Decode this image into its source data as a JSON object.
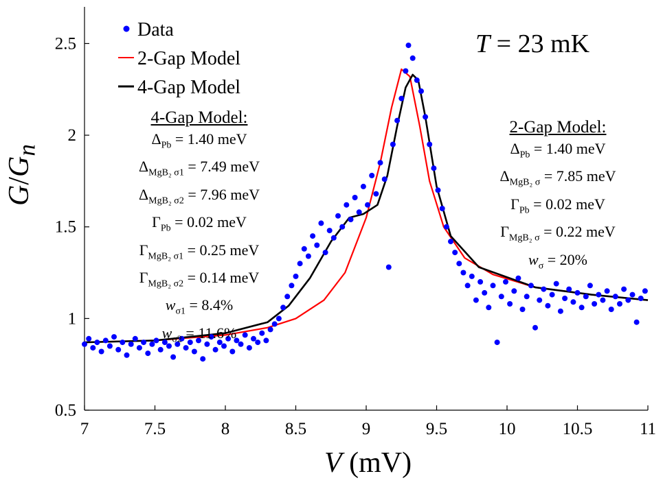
{
  "chart_data": {
    "type": "scatter",
    "xlabel": {
      "var": "V",
      "unit": "(mV)"
    },
    "ylabel": {
      "var1": "G",
      "slash": "/",
      "var2": "G",
      "sub": "n"
    },
    "xlim": [
      7,
      11
    ],
    "ylim": [
      0.5,
      2.7
    ],
    "xticks": [
      "7",
      "7.5",
      "8",
      "8.5",
      "9",
      "9.5",
      "10",
      "10.5",
      "11"
    ],
    "yticks": [
      "0.5",
      "1",
      "1.5",
      "2",
      "2.5"
    ],
    "grid": false,
    "legend_position": "top-left",
    "temperature": {
      "var": "T",
      "rest": " = 23 mK"
    },
    "series": [
      {
        "name": "Data",
        "kind": "scatter",
        "color": "#0000ff"
      },
      {
        "name": "2-Gap Model",
        "kind": "line",
        "color": "#ff0000",
        "x": [
          7.0,
          7.5,
          8.0,
          8.3,
          8.5,
          8.7,
          8.85,
          9.0,
          9.1,
          9.18,
          9.25,
          9.31,
          9.38,
          9.45,
          9.55,
          9.7,
          9.9,
          10.2,
          10.6,
          11.0
        ],
        "y": [
          0.87,
          0.88,
          0.91,
          0.95,
          1.0,
          1.1,
          1.25,
          1.55,
          1.85,
          2.15,
          2.36,
          2.32,
          2.05,
          1.75,
          1.5,
          1.33,
          1.24,
          1.17,
          1.13,
          1.1
        ]
      },
      {
        "name": "4-Gap Model",
        "kind": "line",
        "color": "#000000",
        "x": [
          7.0,
          7.5,
          8.0,
          8.3,
          8.45,
          8.6,
          8.75,
          8.88,
          8.98,
          9.08,
          9.15,
          9.22,
          9.28,
          9.33,
          9.37,
          9.42,
          9.5,
          9.6,
          9.8,
          10.2,
          10.6,
          11.0
        ],
        "y": [
          0.87,
          0.88,
          0.92,
          0.98,
          1.07,
          1.22,
          1.42,
          1.55,
          1.57,
          1.62,
          1.78,
          2.05,
          2.26,
          2.33,
          2.3,
          2.1,
          1.72,
          1.45,
          1.28,
          1.17,
          1.13,
          1.1
        ]
      }
    ],
    "scatter_points": [
      [
        7.0,
        0.86
      ],
      [
        7.03,
        0.89
      ],
      [
        7.06,
        0.84
      ],
      [
        7.09,
        0.87
      ],
      [
        7.12,
        0.82
      ],
      [
        7.15,
        0.88
      ],
      [
        7.18,
        0.85
      ],
      [
        7.21,
        0.9
      ],
      [
        7.24,
        0.83
      ],
      [
        7.27,
        0.87
      ],
      [
        7.3,
        0.8
      ],
      [
        7.33,
        0.86
      ],
      [
        7.36,
        0.89
      ],
      [
        7.39,
        0.84
      ],
      [
        7.42,
        0.87
      ],
      [
        7.45,
        0.81
      ],
      [
        7.48,
        0.86
      ],
      [
        7.51,
        0.88
      ],
      [
        7.54,
        0.83
      ],
      [
        7.57,
        0.87
      ],
      [
        7.6,
        0.85
      ],
      [
        7.63,
        0.79
      ],
      [
        7.66,
        0.86
      ],
      [
        7.69,
        0.89
      ],
      [
        7.72,
        0.84
      ],
      [
        7.75,
        0.87
      ],
      [
        7.78,
        0.82
      ],
      [
        7.81,
        0.88
      ],
      [
        7.84,
        0.78
      ],
      [
        7.87,
        0.86
      ],
      [
        7.9,
        0.9
      ],
      [
        7.93,
        0.83
      ],
      [
        7.96,
        0.87
      ],
      [
        7.99,
        0.85
      ],
      [
        8.02,
        0.89
      ],
      [
        8.05,
        0.82
      ],
      [
        8.08,
        0.88
      ],
      [
        8.11,
        0.86
      ],
      [
        8.14,
        0.91
      ],
      [
        8.17,
        0.84
      ],
      [
        8.2,
        0.89
      ],
      [
        8.23,
        0.87
      ],
      [
        8.26,
        0.92
      ],
      [
        8.29,
        0.88
      ],
      [
        8.32,
        0.94
      ],
      [
        8.35,
        0.97
      ],
      [
        8.38,
        1.0
      ],
      [
        8.41,
        1.06
      ],
      [
        8.44,
        1.12
      ],
      [
        8.47,
        1.18
      ],
      [
        8.5,
        1.23
      ],
      [
        8.53,
        1.3
      ],
      [
        8.56,
        1.38
      ],
      [
        8.59,
        1.34
      ],
      [
        8.62,
        1.45
      ],
      [
        8.65,
        1.4
      ],
      [
        8.68,
        1.52
      ],
      [
        8.71,
        1.36
      ],
      [
        8.74,
        1.48
      ],
      [
        8.77,
        1.44
      ],
      [
        8.8,
        1.56
      ],
      [
        8.83,
        1.5
      ],
      [
        8.86,
        1.62
      ],
      [
        8.89,
        1.54
      ],
      [
        8.92,
        1.66
      ],
      [
        8.95,
        1.58
      ],
      [
        8.98,
        1.72
      ],
      [
        9.01,
        1.62
      ],
      [
        9.04,
        1.78
      ],
      [
        9.07,
        1.68
      ],
      [
        9.1,
        1.85
      ],
      [
        9.13,
        1.76
      ],
      [
        9.16,
        1.28
      ],
      [
        9.19,
        1.95
      ],
      [
        9.22,
        2.08
      ],
      [
        9.25,
        2.2
      ],
      [
        9.28,
        2.35
      ],
      [
        9.3,
        2.49
      ],
      [
        9.33,
        2.42
      ],
      [
        9.36,
        2.3
      ],
      [
        9.39,
        2.24
      ],
      [
        9.42,
        2.1
      ],
      [
        9.45,
        1.95
      ],
      [
        9.48,
        1.82
      ],
      [
        9.51,
        1.7
      ],
      [
        9.54,
        1.6
      ],
      [
        9.57,
        1.5
      ],
      [
        9.6,
        1.42
      ],
      [
        9.63,
        1.36
      ],
      [
        9.66,
        1.3
      ],
      [
        9.69,
        1.25
      ],
      [
        9.72,
        1.18
      ],
      [
        9.75,
        1.23
      ],
      [
        9.78,
        1.1
      ],
      [
        9.81,
        1.2
      ],
      [
        9.84,
        1.14
      ],
      [
        9.87,
        1.06
      ],
      [
        9.9,
        1.18
      ],
      [
        9.93,
        0.87
      ],
      [
        9.96,
        1.12
      ],
      [
        9.99,
        1.2
      ],
      [
        10.02,
        1.08
      ],
      [
        10.05,
        1.15
      ],
      [
        10.08,
        1.22
      ],
      [
        10.11,
        1.05
      ],
      [
        10.14,
        1.12
      ],
      [
        10.17,
        1.18
      ],
      [
        10.2,
        0.95
      ],
      [
        10.23,
        1.1
      ],
      [
        10.26,
        1.16
      ],
      [
        10.29,
        1.07
      ],
      [
        10.32,
        1.13
      ],
      [
        10.35,
        1.19
      ],
      [
        10.38,
        1.04
      ],
      [
        10.41,
        1.11
      ],
      [
        10.44,
        1.16
      ],
      [
        10.47,
        1.09
      ],
      [
        10.5,
        1.14
      ],
      [
        10.53,
        1.06
      ],
      [
        10.56,
        1.12
      ],
      [
        10.59,
        1.18
      ],
      [
        10.62,
        1.08
      ],
      [
        10.65,
        1.13
      ],
      [
        10.68,
        1.1
      ],
      [
        10.71,
        1.15
      ],
      [
        10.74,
        1.05
      ],
      [
        10.77,
        1.12
      ],
      [
        10.8,
        1.08
      ],
      [
        10.83,
        1.16
      ],
      [
        10.86,
        1.1
      ],
      [
        10.89,
        1.13
      ],
      [
        10.92,
        0.98
      ],
      [
        10.95,
        1.11
      ],
      [
        10.98,
        1.15
      ]
    ],
    "annotations": {
      "four_gap": {
        "title": "4-Gap Model:",
        "lines": [
          {
            "sym": "Δ",
            "sub": "Pb",
            "value": " = 1.40 meV"
          },
          {
            "sym": "Δ",
            "sub": "MgB₂ σ1",
            "value": " = 7.49 meV"
          },
          {
            "sym": "Δ",
            "sub": "MgB₂ σ2",
            "value": " = 7.96 meV"
          },
          {
            "sym": "Γ",
            "sub": "Pb",
            "value": " = 0.02 meV"
          },
          {
            "sym": "Γ",
            "sub": "MgB₂ σ1",
            "value": " = 0.25 meV"
          },
          {
            "sym": "Γ",
            "sub": "MgB₂ σ2",
            "value": " = 0.14 meV"
          },
          {
            "sym": "w",
            "sub": "σ1",
            "value": " = 8.4%"
          },
          {
            "sym": "w",
            "sub": "σ2",
            "value": " = 11.6%"
          }
        ]
      },
      "two_gap": {
        "title": "2-Gap Model:",
        "lines": [
          {
            "sym": "Δ",
            "sub": "Pb",
            "value": " = 1.40 meV"
          },
          {
            "sym": "Δ",
            "sub": "MgB₂ σ",
            "value": " = 7.85 meV"
          },
          {
            "sym": "Γ",
            "sub": "Pb",
            "value": " = 0.02 meV"
          },
          {
            "sym": "Γ",
            "sub": "MgB₂ σ",
            "value": " = 0.22 meV"
          },
          {
            "sym": "w",
            "sub": "σ",
            "value": " = 20%"
          }
        ]
      }
    }
  }
}
